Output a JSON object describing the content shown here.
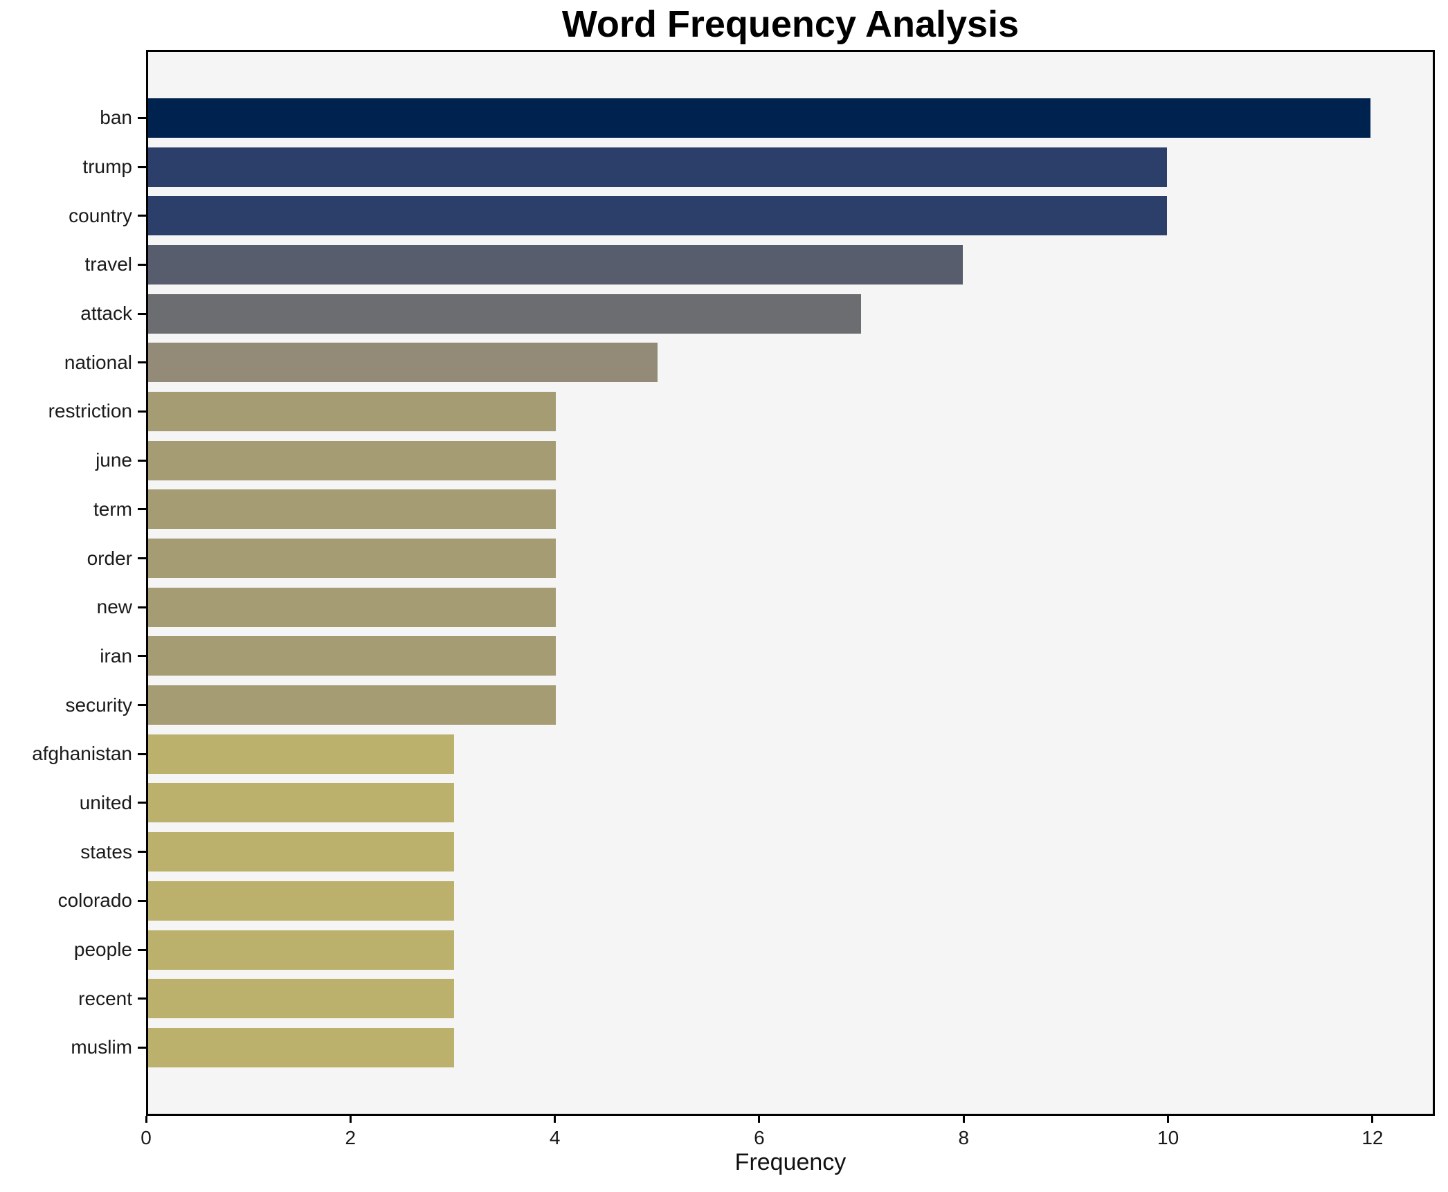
{
  "chart_data": {
    "type": "bar",
    "orientation": "horizontal",
    "title": "Word Frequency Analysis",
    "xlabel": "Frequency",
    "ylabel": "",
    "categories": [
      "ban",
      "trump",
      "country",
      "travel",
      "attack",
      "national",
      "restriction",
      "june",
      "term",
      "order",
      "new",
      "iran",
      "security",
      "afghanistan",
      "united",
      "states",
      "colorado",
      "people",
      "recent",
      "muslim"
    ],
    "values": [
      12,
      10,
      10,
      8,
      7,
      5,
      4,
      4,
      4,
      4,
      4,
      4,
      4,
      3,
      3,
      3,
      3,
      3,
      3,
      3
    ],
    "bar_colors": [
      "#00224e",
      "#2c3e6a",
      "#2c3e6a",
      "#575d6d",
      "#6b6d71",
      "#938b77",
      "#a59c74",
      "#a59c74",
      "#a59c74",
      "#a59c74",
      "#a59c74",
      "#a59c74",
      "#a59c74",
      "#bcb16c",
      "#bcb16c",
      "#bcb16c",
      "#bcb16c",
      "#bcb16c",
      "#bcb16c",
      "#bcb16c"
    ],
    "xticks": [
      0,
      2,
      4,
      6,
      8,
      10,
      12
    ],
    "xlim": [
      0,
      12.61
    ],
    "grid": false,
    "legend": false,
    "plot_background": "#f5f5f6",
    "figure_background": "#ffffff",
    "spine_color": "#000000",
    "colormap": "cividis"
  }
}
